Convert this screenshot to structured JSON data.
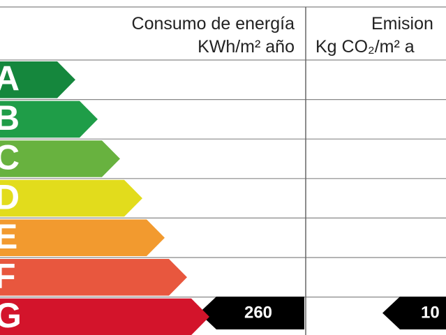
{
  "header": {
    "consumption_title": "Consumo de energía",
    "consumption_unit": "KWh/m² año",
    "emission_title": "Emision",
    "emission_unit": "Kg CO₂/m² a"
  },
  "rows": [
    {
      "letter": "A",
      "color": "#15873d"
    },
    {
      "letter": "B",
      "color": "#1f9d48"
    },
    {
      "letter": "C",
      "color": "#68b23f"
    },
    {
      "letter": "D",
      "color": "#e2dc1c"
    },
    {
      "letter": "E",
      "color": "#f29a2f"
    },
    {
      "letter": "F",
      "color": "#e8573e"
    },
    {
      "letter": "G",
      "color": "#d3142b"
    }
  ],
  "rating": {
    "consumption": "260",
    "emission": "10"
  }
}
